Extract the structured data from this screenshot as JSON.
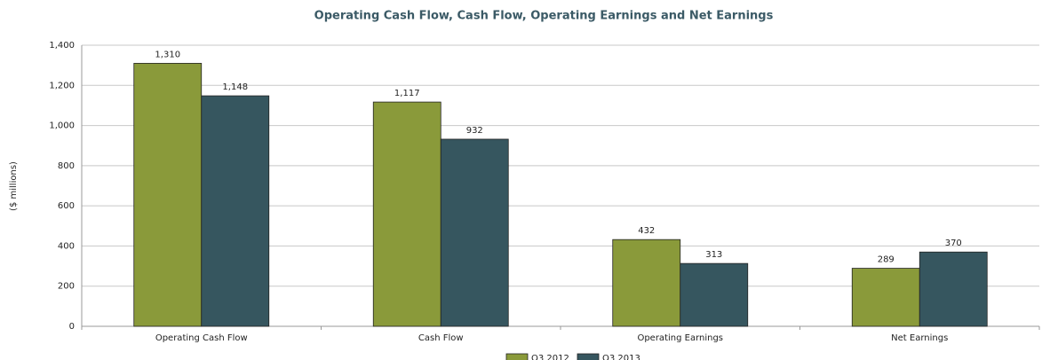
{
  "chart_data": {
    "type": "bar",
    "title": "Operating Cash Flow, Cash Flow, Operating Earnings and Net Earnings",
    "ylabel": "($ millions)",
    "categories": [
      "Operating Cash Flow",
      "Cash Flow",
      "Operating Earnings",
      "Net Earnings"
    ],
    "series": [
      {
        "name": "Q3 2012",
        "color": "#8a9a3a",
        "values": [
          1310,
          1117,
          432,
          289
        ],
        "value_labels": [
          "1,310",
          "1,117",
          "432",
          "289"
        ]
      },
      {
        "name": "Q3 2013",
        "color": "#36565f",
        "values": [
          1148,
          932,
          313,
          370
        ],
        "value_labels": [
          "1,148",
          "932",
          "313",
          "370"
        ]
      }
    ],
    "ylim": [
      0,
      1400
    ],
    "yticks": [
      0,
      200,
      400,
      600,
      800,
      {
        "value": 1000,
        "label": "1,000"
      },
      {
        "value": 1200,
        "label": "1,200"
      },
      {
        "value": 1400,
        "label": "1,400"
      }
    ],
    "grid": true,
    "legend": "bottom"
  }
}
